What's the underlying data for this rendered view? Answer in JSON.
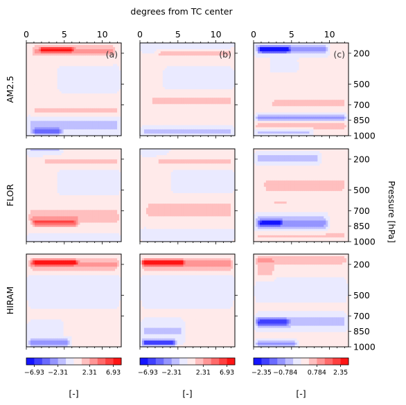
{
  "chart_data": {
    "type": "heatmap",
    "title": "",
    "top_xlabel": "degrees from TC center",
    "x_ticks": [
      0,
      5,
      10
    ],
    "xlim": [
      0,
      12.5
    ],
    "ylabel_right": "Pressure [hPa]",
    "y_ticks": [
      200,
      500,
      700,
      850,
      1000
    ],
    "ylim_hPa": [
      1000,
      100
    ],
    "column_labels": [
      "(a)",
      "(b)",
      "(c)"
    ],
    "row_labels": [
      "AM2.5",
      "FLOR",
      "HIRAM"
    ],
    "colorbars": [
      {
        "ticks": [
          "−6.93",
          "−2.31",
          "2.31",
          "6.93"
        ],
        "range": [
          -9.24,
          9.24
        ],
        "label": "[-]"
      },
      {
        "ticks": [
          "−6.93",
          "−2.31",
          "2.31",
          "6.93"
        ],
        "range": [
          -9.24,
          9.24
        ],
        "label": "[-]"
      },
      {
        "ticks": [
          "−2.35",
          "−0.784",
          "0.784",
          "2.35"
        ],
        "range": [
          -3.14,
          3.14
        ],
        "label": "[-]"
      }
    ],
    "colormap": {
      "negative": "#0000ff",
      "zero": "#ffffff",
      "positive": "#ff0000"
    },
    "panels": [
      {
        "row": "AM2.5",
        "col": "(a)",
        "background": 0.05,
        "blobs": [
          {
            "p": 180,
            "x0": 0.5,
            "x1": 12,
            "value": 3.5,
            "depth": 55
          },
          {
            "p": 165,
            "x0": 1.5,
            "x1": 6.5,
            "value": 6.5,
            "depth": 25
          },
          {
            "p": 450,
            "x0": 4,
            "x1": 12.5,
            "value": -1.0,
            "depth": 80
          },
          {
            "p": 760,
            "x0": 0.5,
            "x1": 12.5,
            "value": 2.0,
            "depth": 45
          },
          {
            "p": 900,
            "x0": 0,
            "x1": 12.5,
            "value": -2.5,
            "depth": 60
          },
          {
            "p": 960,
            "x0": 0.5,
            "x1": 5,
            "value": -4.5,
            "depth": 30
          }
        ]
      },
      {
        "row": "AM2.5",
        "col": "(b)",
        "background": 0.05,
        "blobs": [
          {
            "p": 120,
            "x0": 0,
            "x1": 12.5,
            "value": -1.0,
            "depth": 50
          },
          {
            "p": 200,
            "x0": 2,
            "x1": 12.5,
            "value": 2.0,
            "depth": 45
          },
          {
            "p": 450,
            "x0": 3,
            "x1": 12.5,
            "value": -1.0,
            "depth": 70
          },
          {
            "p": 660,
            "x0": 1,
            "x1": 12.5,
            "value": 2.0,
            "depth": 50
          },
          {
            "p": 850,
            "x0": 0,
            "x1": 12.5,
            "value": 1.5,
            "depth": 45
          },
          {
            "p": 960,
            "x0": 0,
            "x1": 12.5,
            "value": -2.0,
            "depth": 45
          }
        ]
      },
      {
        "row": "AM2.5",
        "col": "(c)",
        "background": 0.05,
        "blobs": [
          {
            "p": 160,
            "x0": 0,
            "x1": 10,
            "value": -1.4,
            "depth": 50
          },
          {
            "p": 165,
            "x0": 0.5,
            "x1": 5,
            "value": -2.8,
            "depth": 25
          },
          {
            "p": 320,
            "x0": 2,
            "x1": 6,
            "value": -0.4,
            "depth": 50
          },
          {
            "p": 440,
            "x0": 8,
            "x1": 12,
            "value": 0.4,
            "depth": 60
          },
          {
            "p": 690,
            "x0": 2,
            "x1": 12.5,
            "value": 0.8,
            "depth": 40
          },
          {
            "p": 830,
            "x0": 0,
            "x1": 12.5,
            "value": -1.2,
            "depth": 30
          },
          {
            "p": 900,
            "x0": 0,
            "x1": 12.5,
            "value": 0.9,
            "depth": 40
          },
          {
            "p": 960,
            "x0": 0,
            "x1": 8,
            "value": -0.8,
            "depth": 30
          }
        ]
      },
      {
        "row": "FLOR",
        "col": "(a)",
        "background": 0.05,
        "blobs": [
          {
            "p": 110,
            "x0": 0,
            "x1": 5,
            "value": -2.0,
            "depth": 40
          },
          {
            "p": 220,
            "x0": 2,
            "x1": 12.5,
            "value": 2.0,
            "depth": 50
          },
          {
            "p": 420,
            "x0": 4,
            "x1": 12.5,
            "value": -1.0,
            "depth": 80
          },
          {
            "p": 760,
            "x0": 0,
            "x1": 12.5,
            "value": 3.0,
            "depth": 70
          },
          {
            "p": 820,
            "x0": 0.5,
            "x1": 7,
            "value": 5.0,
            "depth": 35
          },
          {
            "p": 970,
            "x0": 0,
            "x1": 12.5,
            "value": -1.0,
            "depth": 30
          }
        ]
      },
      {
        "row": "FLOR",
        "col": "(b)",
        "background": 0.05,
        "blobs": [
          {
            "p": 110,
            "x0": 0,
            "x1": 4,
            "value": -1.5,
            "depth": 40
          },
          {
            "p": 220,
            "x0": 2,
            "x1": 12.5,
            "value": 2.0,
            "depth": 50
          },
          {
            "p": 420,
            "x0": 4,
            "x1": 12.5,
            "value": -1.0,
            "depth": 80
          },
          {
            "p": 700,
            "x0": 0.5,
            "x1": 12.5,
            "value": 2.5,
            "depth": 90
          },
          {
            "p": 930,
            "x0": 0,
            "x1": 12.5,
            "value": -1.0,
            "depth": 40
          }
        ]
      },
      {
        "row": "FLOR",
        "col": "(c)",
        "background": 0.05,
        "blobs": [
          {
            "p": 190,
            "x0": 0,
            "x1": 9,
            "value": -0.9,
            "depth": 45
          },
          {
            "p": 450,
            "x0": 1,
            "x1": 12.5,
            "value": 0.7,
            "depth": 80
          },
          {
            "p": 620,
            "x0": 2,
            "x1": 5,
            "value": 0.5,
            "depth": 60
          },
          {
            "p": 820,
            "x0": 0,
            "x1": 10,
            "value": -1.4,
            "depth": 60
          },
          {
            "p": 820,
            "x0": 0.5,
            "x1": 4,
            "value": -2.6,
            "depth": 25
          },
          {
            "p": 940,
            "x0": 0,
            "x1": 12.5,
            "value": 0.6,
            "depth": 30
          }
        ]
      },
      {
        "row": "HIRAM",
        "col": "(a)",
        "background": 0.05,
        "blobs": [
          {
            "p": 200,
            "x0": 0,
            "x1": 12.5,
            "value": 3.5,
            "depth": 60
          },
          {
            "p": 180,
            "x0": 0.5,
            "x1": 7,
            "value": 7.5,
            "depth": 25
          },
          {
            "p": 430,
            "x0": 0,
            "x1": 12.5,
            "value": -0.8,
            "depth": 120
          },
          {
            "p": 850,
            "x0": 0,
            "x1": 5,
            "value": -1.5,
            "depth": 60
          },
          {
            "p": 960,
            "x0": 0,
            "x1": 6,
            "value": -5.0,
            "depth": 30
          }
        ]
      },
      {
        "row": "HIRAM",
        "col": "(b)",
        "background": 0.05,
        "blobs": [
          {
            "p": 200,
            "x0": 0,
            "x1": 12.5,
            "value": 4.0,
            "depth": 60
          },
          {
            "p": 180,
            "x0": 0,
            "x1": 6,
            "value": 8.5,
            "depth": 25
          },
          {
            "p": 430,
            "x0": 0,
            "x1": 12.5,
            "value": -0.8,
            "depth": 120
          },
          {
            "p": 850,
            "x0": 0,
            "x1": 6,
            "value": -2.0,
            "depth": 70
          },
          {
            "p": 960,
            "x0": 0,
            "x1": 5,
            "value": -7.5,
            "depth": 30
          }
        ]
      },
      {
        "row": "HIRAM",
        "col": "(c)",
        "background": 0.05,
        "blobs": [
          {
            "p": 160,
            "x0": 0,
            "x1": 12.5,
            "value": 0.9,
            "depth": 40
          },
          {
            "p": 250,
            "x0": 0,
            "x1": 3,
            "value": 0.8,
            "depth": 80
          },
          {
            "p": 450,
            "x0": 0,
            "x1": 12.5,
            "value": -0.4,
            "depth": 90
          },
          {
            "p": 760,
            "x0": 0,
            "x1": 12.5,
            "value": -0.9,
            "depth": 60
          },
          {
            "p": 760,
            "x0": 0,
            "x1": 5,
            "value": -1.6,
            "depth": 35
          },
          {
            "p": 970,
            "x0": 0,
            "x1": 6,
            "value": -1.3,
            "depth": 30
          }
        ]
      }
    ]
  }
}
